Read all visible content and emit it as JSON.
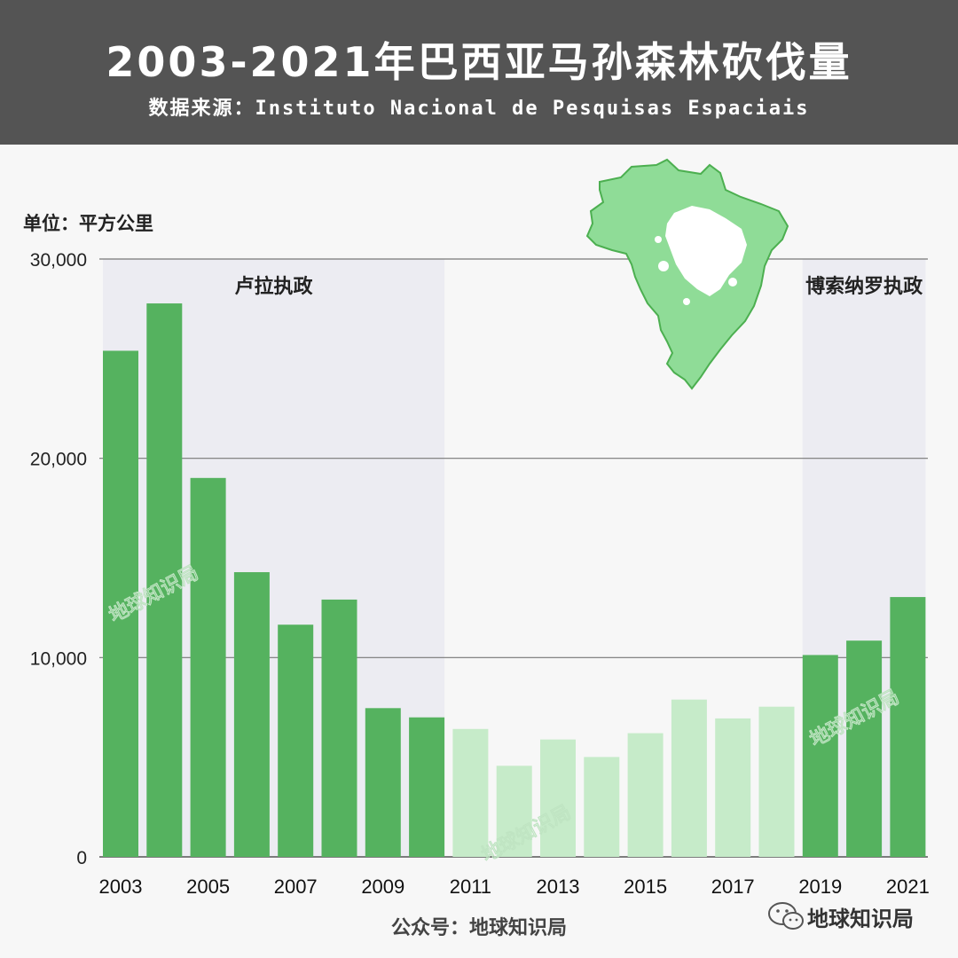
{
  "header": {
    "title": "2003-2021年巴西亚马孙森林砍伐量",
    "subtitle": "数据来源：Instituto Nacional de Pesquisas Espaciais"
  },
  "unit_label": "单位：平方公里",
  "footer": "公众号：地球知识局",
  "wechat_label": "地球知识局",
  "watermark": "地球知识局",
  "colors": {
    "header_bg": "#545454",
    "bar_dark": "#55b25f",
    "bar_light": "#c6ebc9",
    "shade": "#ececf2",
    "map_fill": "#8fdc97",
    "map_stroke": "#4caf50"
  },
  "chart_data": {
    "type": "bar",
    "categories": [
      "2003",
      "2004",
      "2005",
      "2006",
      "2007",
      "2008",
      "2009",
      "2010",
      "2011",
      "2012",
      "2013",
      "2014",
      "2015",
      "2016",
      "2017",
      "2018",
      "2019",
      "2020",
      "2021"
    ],
    "values": [
      25396,
      27772,
      19014,
      14286,
      11651,
      12911,
      7464,
      7000,
      6418,
      4571,
      5891,
      5012,
      6207,
      7893,
      6947,
      7536,
      10129,
      10851,
      13038
    ],
    "x_tick_labels": [
      "2003",
      "2005",
      "2007",
      "2009",
      "2011",
      "2013",
      "2015",
      "2017",
      "2019",
      "2021"
    ],
    "y_ticks": [
      0,
      10000,
      20000,
      30000
    ],
    "y_tick_labels": [
      "0",
      "10,000",
      "20,000",
      "30,000"
    ],
    "ylim": [
      0,
      30000
    ],
    "grid": true,
    "highlight_ranges": [
      {
        "label": "卢拉执政",
        "from": "2003",
        "to": "2010"
      },
      {
        "label": "博索纳罗执政",
        "from": "2019",
        "to": "2021"
      }
    ],
    "light_bar_range": {
      "from": "2011",
      "to": "2018"
    }
  }
}
